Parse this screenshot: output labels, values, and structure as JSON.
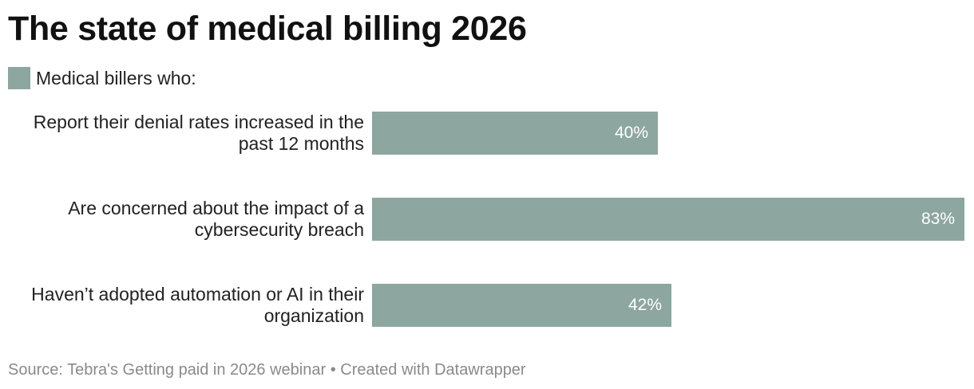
{
  "header": {
    "title": "The state of medical billing 2026"
  },
  "legend": {
    "label": "Medical billers who:"
  },
  "colors": {
    "bar": "#8da6a0",
    "bar_text": "#ffffff"
  },
  "chart_data": {
    "type": "bar",
    "orientation": "horizontal",
    "categories": [
      "Report their denial rates increased in the past 12 months",
      "Are concerned about the impact of a cybersecurity breach",
      "Haven’t adopted automation or AI in their organization"
    ],
    "category_lines": [
      [
        "Report their denial rates increased in the",
        "past 12 months"
      ],
      [
        "Are concerned about the impact of a",
        "cybersecurity breach"
      ],
      [
        "Haven’t adopted automation or AI in their",
        "organization"
      ]
    ],
    "series": [
      {
        "name": "Medical billers who:",
        "values": [
          40,
          83,
          42
        ],
        "labels": [
          "40%",
          "83%",
          "42%"
        ]
      }
    ],
    "xlim": [
      0,
      83
    ],
    "grid": false,
    "legend_position": "top-left"
  },
  "footer": {
    "source": "Source: Tebra's Getting paid in 2026 webinar • Created with Datawrapper"
  }
}
